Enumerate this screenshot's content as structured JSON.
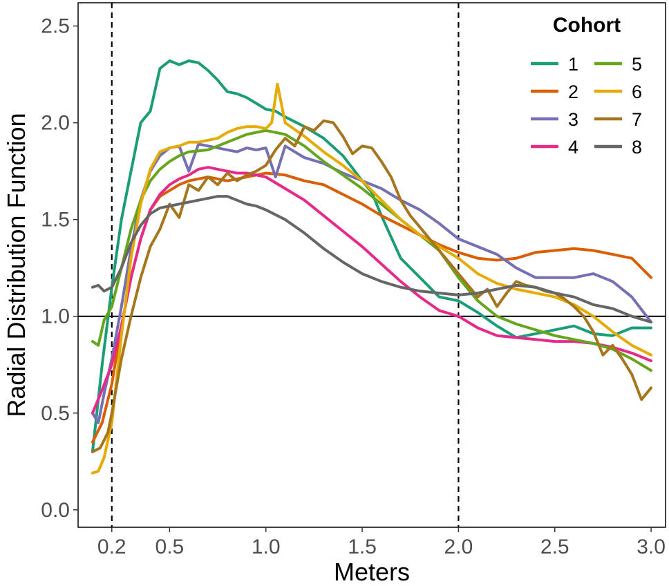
{
  "chart_data": {
    "type": "line",
    "xlabel": "Meters",
    "ylabel": "Radial Distribution Function",
    "xlim": [
      0.025,
      3.075
    ],
    "ylim": [
      -0.09,
      2.62
    ],
    "x_ticks": [
      0.2,
      0.5,
      1.0,
      1.5,
      2.0,
      2.5,
      3.0
    ],
    "x_tick_labels": [
      "0.2",
      "0.5",
      "1.0",
      "1.5",
      "2.0",
      "2.5",
      "3.0"
    ],
    "y_ticks": [
      0.0,
      0.5,
      1.0,
      1.5,
      2.0,
      2.5
    ],
    "y_tick_labels": [
      "0.0",
      "0.5",
      "1.0",
      "1.5",
      "2.0",
      "2.5"
    ],
    "hline": 1.0,
    "vlines": [
      0.2,
      2.0
    ],
    "grid": false,
    "legend": {
      "title": "Cohort",
      "position": "top-right",
      "columns": 2
    },
    "series": [
      {
        "name": "1",
        "color": "#1B9E77",
        "x": [
          0.1,
          0.15,
          0.2,
          0.25,
          0.3,
          0.35,
          0.4,
          0.45,
          0.5,
          0.55,
          0.6,
          0.65,
          0.7,
          0.75,
          0.8,
          0.85,
          0.9,
          0.95,
          1.0,
          1.05,
          1.1,
          1.2,
          1.3,
          1.4,
          1.5,
          1.55,
          1.6,
          1.7,
          1.8,
          1.9,
          2.0,
          2.1,
          2.2,
          2.3,
          2.4,
          2.5,
          2.6,
          2.7,
          2.8,
          2.9,
          3.0
        ],
        "y": [
          0.3,
          0.75,
          1.15,
          1.5,
          1.75,
          2.0,
          2.06,
          2.28,
          2.32,
          2.3,
          2.32,
          2.31,
          2.27,
          2.22,
          2.16,
          2.15,
          2.13,
          2.1,
          2.07,
          2.06,
          2.03,
          1.98,
          1.92,
          1.83,
          1.7,
          1.64,
          1.52,
          1.3,
          1.2,
          1.1,
          1.08,
          1.02,
          0.95,
          0.89,
          0.91,
          0.93,
          0.95,
          0.91,
          0.9,
          0.94,
          0.94
        ]
      },
      {
        "name": "2",
        "color": "#D95F02",
        "x": [
          0.1,
          0.15,
          0.2,
          0.25,
          0.3,
          0.35,
          0.4,
          0.45,
          0.5,
          0.55,
          0.6,
          0.7,
          0.8,
          0.9,
          1.0,
          1.1,
          1.2,
          1.3,
          1.4,
          1.5,
          1.6,
          1.7,
          1.8,
          1.9,
          2.0,
          2.1,
          2.2,
          2.3,
          2.4,
          2.5,
          2.6,
          2.7,
          2.8,
          2.9,
          3.0
        ],
        "y": [
          0.35,
          0.45,
          0.65,
          0.95,
          1.2,
          1.4,
          1.55,
          1.62,
          1.65,
          1.68,
          1.7,
          1.72,
          1.7,
          1.72,
          1.74,
          1.73,
          1.7,
          1.68,
          1.63,
          1.58,
          1.52,
          1.47,
          1.42,
          1.37,
          1.33,
          1.3,
          1.29,
          1.3,
          1.33,
          1.34,
          1.35,
          1.34,
          1.32,
          1.3,
          1.2
        ]
      },
      {
        "name": "3",
        "color": "#7570B3",
        "x": [
          0.1,
          0.13,
          0.16,
          0.2,
          0.25,
          0.3,
          0.35,
          0.4,
          0.45,
          0.5,
          0.55,
          0.6,
          0.65,
          0.7,
          0.75,
          0.8,
          0.85,
          0.9,
          0.95,
          1.0,
          1.05,
          1.1,
          1.2,
          1.3,
          1.4,
          1.5,
          1.6,
          1.7,
          1.8,
          1.9,
          2.0,
          2.1,
          2.2,
          2.3,
          2.4,
          2.5,
          2.6,
          2.7,
          2.8,
          2.9,
          3.0
        ],
        "y": [
          0.5,
          0.45,
          0.6,
          0.78,
          1.05,
          1.35,
          1.6,
          1.75,
          1.83,
          1.87,
          1.88,
          1.75,
          1.89,
          1.88,
          1.87,
          1.86,
          1.85,
          1.87,
          1.86,
          1.87,
          1.72,
          1.88,
          1.82,
          1.79,
          1.74,
          1.7,
          1.66,
          1.6,
          1.55,
          1.48,
          1.4,
          1.36,
          1.32,
          1.25,
          1.2,
          1.2,
          1.2,
          1.22,
          1.18,
          1.1,
          0.97
        ]
      },
      {
        "name": "4",
        "color": "#E7298A",
        "x": [
          0.1,
          0.15,
          0.2,
          0.25,
          0.3,
          0.35,
          0.4,
          0.45,
          0.5,
          0.55,
          0.6,
          0.65,
          0.7,
          0.75,
          0.8,
          0.85,
          0.9,
          0.95,
          1.0,
          1.1,
          1.2,
          1.3,
          1.4,
          1.5,
          1.6,
          1.7,
          1.8,
          1.9,
          2.0,
          2.1,
          2.2,
          2.3,
          2.4,
          2.5,
          2.6,
          2.7,
          2.8,
          2.9,
          3.0
        ],
        "y": [
          0.5,
          0.62,
          0.75,
          0.95,
          1.2,
          1.4,
          1.55,
          1.63,
          1.68,
          1.71,
          1.73,
          1.76,
          1.77,
          1.76,
          1.75,
          1.74,
          1.74,
          1.73,
          1.72,
          1.66,
          1.6,
          1.52,
          1.44,
          1.36,
          1.27,
          1.18,
          1.1,
          1.03,
          1.0,
          0.94,
          0.9,
          0.89,
          0.88,
          0.87,
          0.87,
          0.86,
          0.84,
          0.81,
          0.77
        ]
      },
      {
        "name": "5",
        "color": "#66A61E",
        "x": [
          0.1,
          0.13,
          0.16,
          0.2,
          0.25,
          0.3,
          0.35,
          0.4,
          0.45,
          0.5,
          0.55,
          0.6,
          0.7,
          0.8,
          0.9,
          1.0,
          1.1,
          1.2,
          1.3,
          1.4,
          1.5,
          1.6,
          1.7,
          1.8,
          1.9,
          2.0,
          2.1,
          2.2,
          2.3,
          2.4,
          2.5,
          2.6,
          2.7,
          2.8,
          2.9,
          3.0
        ],
        "y": [
          0.87,
          0.85,
          0.98,
          1.05,
          1.25,
          1.45,
          1.6,
          1.7,
          1.76,
          1.8,
          1.83,
          1.85,
          1.86,
          1.9,
          1.94,
          1.96,
          1.94,
          1.88,
          1.8,
          1.73,
          1.66,
          1.58,
          1.5,
          1.42,
          1.34,
          1.2,
          1.08,
          1.0,
          0.96,
          0.93,
          0.9,
          0.88,
          0.86,
          0.83,
          0.78,
          0.72
        ]
      },
      {
        "name": "6",
        "color": "#E6AB02",
        "x": [
          0.1,
          0.13,
          0.16,
          0.2,
          0.25,
          0.3,
          0.35,
          0.4,
          0.45,
          0.5,
          0.55,
          0.6,
          0.65,
          0.7,
          0.75,
          0.8,
          0.85,
          0.9,
          0.95,
          1.0,
          1.03,
          1.06,
          1.1,
          1.2,
          1.3,
          1.4,
          1.5,
          1.6,
          1.7,
          1.8,
          1.9,
          2.0,
          2.1,
          2.2,
          2.3,
          2.4,
          2.5,
          2.6,
          2.7,
          2.8,
          2.9,
          3.0
        ],
        "y": [
          0.19,
          0.2,
          0.27,
          0.45,
          0.9,
          1.3,
          1.58,
          1.76,
          1.85,
          1.87,
          1.88,
          1.9,
          1.9,
          1.91,
          1.92,
          1.95,
          1.97,
          1.98,
          1.98,
          1.97,
          2.0,
          2.2,
          2.0,
          1.93,
          1.85,
          1.78,
          1.7,
          1.6,
          1.5,
          1.42,
          1.36,
          1.3,
          1.22,
          1.17,
          1.14,
          1.12,
          1.1,
          1.06,
          1.0,
          0.92,
          0.85,
          0.8
        ]
      },
      {
        "name": "7",
        "color": "#A6761D",
        "x": [
          0.1,
          0.14,
          0.18,
          0.2,
          0.25,
          0.3,
          0.35,
          0.4,
          0.45,
          0.5,
          0.55,
          0.6,
          0.65,
          0.7,
          0.75,
          0.8,
          0.85,
          0.9,
          0.95,
          1.0,
          1.05,
          1.1,
          1.15,
          1.2,
          1.25,
          1.3,
          1.35,
          1.4,
          1.45,
          1.5,
          1.55,
          1.6,
          1.65,
          1.7,
          1.75,
          1.8,
          1.85,
          1.9,
          1.95,
          2.0,
          2.05,
          2.1,
          2.15,
          2.2,
          2.25,
          2.3,
          2.35,
          2.4,
          2.45,
          2.5,
          2.55,
          2.6,
          2.65,
          2.7,
          2.75,
          2.8,
          2.85,
          2.9,
          2.95,
          3.0
        ],
        "y": [
          0.3,
          0.32,
          0.4,
          0.5,
          0.78,
          1.0,
          1.2,
          1.36,
          1.45,
          1.58,
          1.51,
          1.68,
          1.65,
          1.72,
          1.68,
          1.74,
          1.7,
          1.73,
          1.75,
          1.78,
          1.86,
          1.92,
          1.88,
          1.98,
          1.96,
          2.01,
          2.0,
          1.93,
          1.84,
          1.88,
          1.87,
          1.8,
          1.72,
          1.6,
          1.52,
          1.46,
          1.4,
          1.34,
          1.28,
          1.22,
          1.16,
          1.1,
          1.14,
          1.05,
          1.12,
          1.18,
          1.16,
          1.15,
          1.13,
          1.12,
          1.09,
          1.05,
          1.0,
          0.92,
          0.8,
          0.85,
          0.78,
          0.7,
          0.57,
          0.63
        ]
      },
      {
        "name": "8",
        "color": "#666666",
        "x": [
          0.1,
          0.13,
          0.16,
          0.2,
          0.25,
          0.3,
          0.35,
          0.4,
          0.45,
          0.5,
          0.55,
          0.6,
          0.65,
          0.7,
          0.75,
          0.8,
          0.85,
          0.9,
          0.95,
          1.0,
          1.1,
          1.2,
          1.3,
          1.4,
          1.5,
          1.6,
          1.7,
          1.8,
          1.9,
          2.0,
          2.1,
          2.2,
          2.3,
          2.4,
          2.5,
          2.6,
          2.7,
          2.8,
          2.9,
          3.0
        ],
        "y": [
          1.15,
          1.16,
          1.13,
          1.15,
          1.25,
          1.38,
          1.47,
          1.53,
          1.56,
          1.57,
          1.58,
          1.59,
          1.6,
          1.61,
          1.62,
          1.62,
          1.6,
          1.58,
          1.57,
          1.55,
          1.5,
          1.43,
          1.35,
          1.28,
          1.22,
          1.18,
          1.15,
          1.13,
          1.12,
          1.11,
          1.12,
          1.14,
          1.16,
          1.15,
          1.12,
          1.1,
          1.06,
          1.04,
          1.0,
          0.97
        ]
      }
    ]
  }
}
